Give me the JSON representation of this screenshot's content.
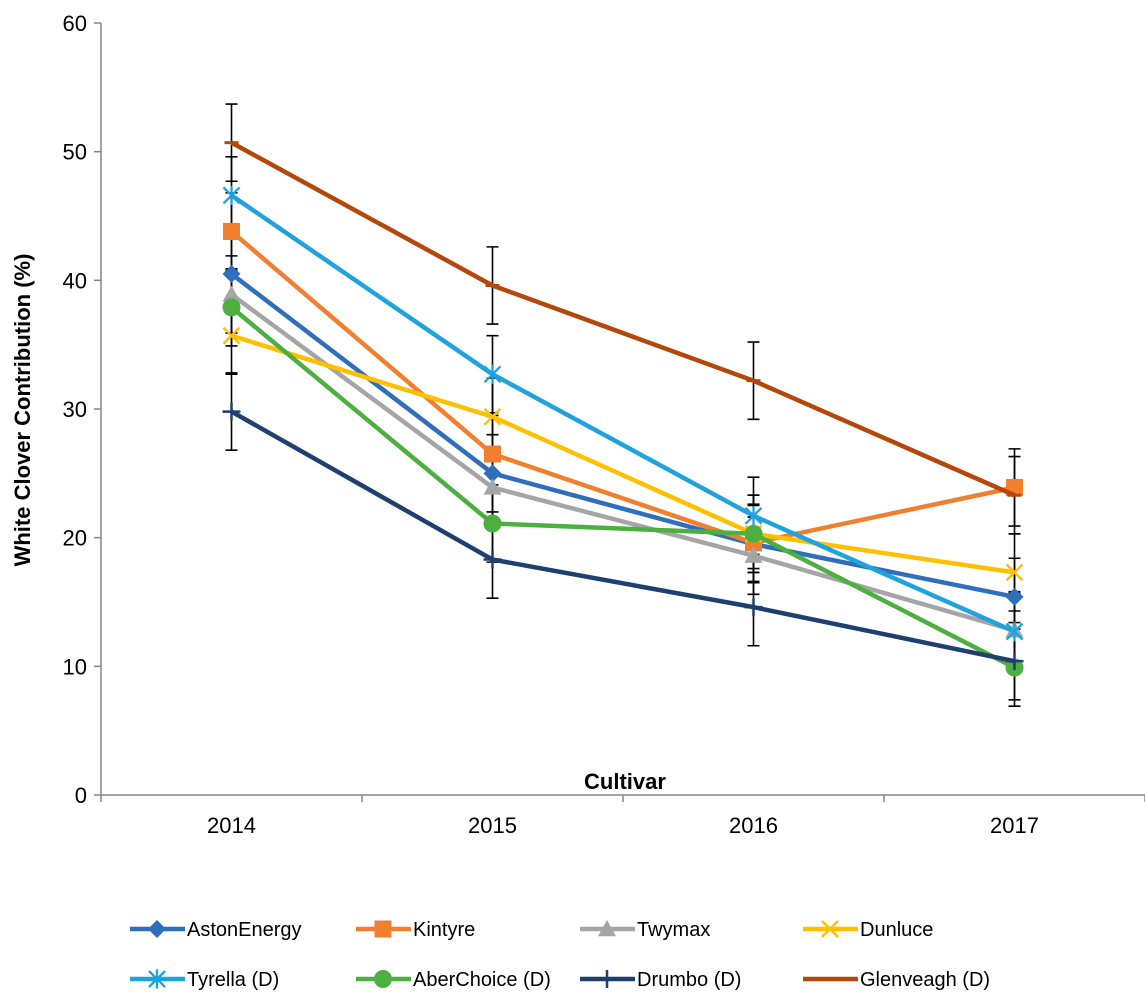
{
  "chart_data": {
    "type": "line",
    "title": "",
    "xlabel": "Cultivar",
    "ylabel": "White Clover Contribution (%)",
    "categories": [
      "2014",
      "2015",
      "2016",
      "2017"
    ],
    "ylim": [
      0,
      60
    ],
    "yticks": [
      0,
      10,
      20,
      30,
      40,
      50,
      60
    ],
    "grid": false,
    "legend_position": "bottom",
    "series": [
      {
        "name": "AstonEnergy",
        "color": "#2F6EBA",
        "marker": "diamond",
        "values": [
          40.5,
          25.0,
          19.5,
          15.4
        ],
        "error": [
          3.0,
          3.0,
          3.0,
          3.0
        ]
      },
      {
        "name": "Kintyre",
        "color": "#F07F30",
        "marker": "square",
        "values": [
          43.8,
          26.5,
          19.6,
          23.9
        ],
        "error": [
          3.0,
          3.0,
          3.0,
          3.0
        ]
      },
      {
        "name": "Twymax",
        "color": "#A5A5A5",
        "marker": "triangle",
        "values": [
          38.9,
          23.9,
          18.6,
          12.8
        ],
        "error": [
          3.0,
          3.0,
          3.0,
          3.0
        ]
      },
      {
        "name": "Dunluce",
        "color": "#FFC000",
        "marker": "x",
        "values": [
          35.7,
          29.4,
          20.3,
          17.3
        ],
        "error": [
          3.0,
          3.0,
          3.0,
          3.0
        ]
      },
      {
        "name": "Tyrella (D)",
        "color": "#1FA2DE",
        "marker": "star",
        "values": [
          46.6,
          32.7,
          21.7,
          12.7
        ],
        "error": [
          3.0,
          3.0,
          3.0,
          3.0
        ]
      },
      {
        "name": "AberChoice (D)",
        "color": "#4CAF3F",
        "marker": "circle",
        "values": [
          37.9,
          21.1,
          20.3,
          9.9
        ],
        "error": [
          3.0,
          3.0,
          3.0,
          3.0
        ]
      },
      {
        "name": "Drumbo (D)",
        "color": "#1F3F6E",
        "marker": "plus",
        "values": [
          29.8,
          18.3,
          14.6,
          10.4
        ],
        "error": [
          3.0,
          3.0,
          3.0,
          3.0
        ]
      },
      {
        "name": "Glenveagh (D)",
        "color": "#B5470B",
        "marker": "dash",
        "values": [
          50.7,
          39.6,
          32.2,
          23.3
        ],
        "error": [
          3.0,
          3.0,
          3.0,
          3.0
        ]
      }
    ]
  }
}
